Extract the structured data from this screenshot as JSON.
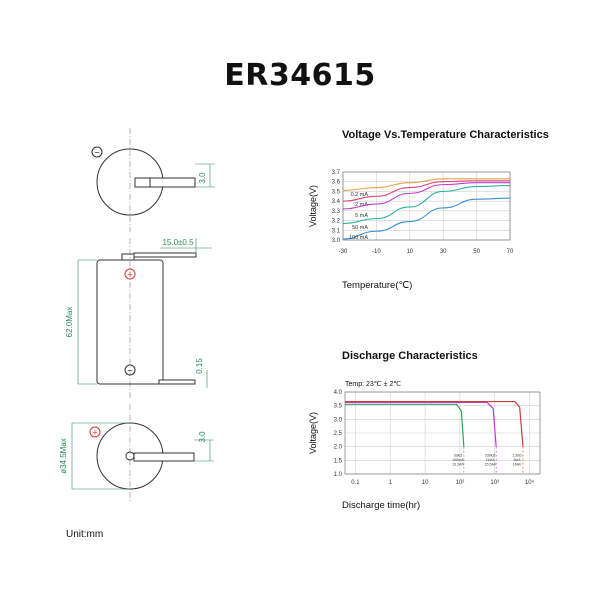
{
  "title": "ER34615",
  "unit_note": "Unit:mm",
  "drawing": {
    "top_view_sign": "−",
    "top_tab_dim": "3.0",
    "tab_length_dim": "15.0±0.5",
    "height_dim": "62.0Max",
    "tab_offset_dim": "0.15",
    "diameter_dim": "ø34.5Max",
    "bottom_tab_dim": "3.0",
    "plus_sign": "+",
    "minus_sign": "−"
  },
  "chart_data": [
    {
      "type": "line",
      "title": "Voltage Vs.Temperature Characteristics",
      "xlabel": "Temperature(℃)",
      "ylabel": "Voltage(V)",
      "xlim": [
        -30,
        70
      ],
      "ylim": [
        3.0,
        3.7
      ],
      "xticks": [
        "-30",
        "-10",
        "10",
        "30",
        "50",
        "70"
      ],
      "yticks": [
        "3.7",
        "3.6",
        "3.5",
        "3.4",
        "3.3",
        "3.2",
        "3.1",
        "3.0"
      ],
      "grid": true,
      "series": [
        {
          "name": "0.2 mA",
          "color": "#e8a24a",
          "x": [
            -30,
            -10,
            10,
            30,
            50,
            70
          ],
          "y": [
            3.51,
            3.54,
            3.59,
            3.63,
            3.63,
            3.63
          ]
        },
        {
          "name": "2 mA",
          "color": "#e0457b",
          "x": [
            -30,
            -10,
            10,
            30,
            50,
            70
          ],
          "y": [
            3.4,
            3.45,
            3.54,
            3.6,
            3.61,
            3.61
          ]
        },
        {
          "name": "5 mA",
          "color": "#c33bd0",
          "x": [
            -30,
            -10,
            10,
            30,
            50,
            70
          ],
          "y": [
            3.32,
            3.37,
            3.48,
            3.57,
            3.59,
            3.59
          ]
        },
        {
          "name": "50 mA",
          "color": "#2cb59c",
          "x": [
            -30,
            -10,
            10,
            30,
            50,
            70
          ],
          "y": [
            3.17,
            3.22,
            3.34,
            3.5,
            3.55,
            3.56
          ]
        },
        {
          "name": "100 mA",
          "color": "#3a8fd8",
          "x": [
            -30,
            -10,
            10,
            30,
            50,
            70
          ],
          "y": [
            3.01,
            3.09,
            3.19,
            3.33,
            3.42,
            3.43
          ]
        }
      ]
    },
    {
      "type": "line",
      "title": "Discharge Characteristics",
      "annotation": "Temp: 23℃ ± 2℃",
      "xlabel": "Discharge time(hr)",
      "ylabel": "Voltage(V)",
      "xscale": "log",
      "xlim": [
        0.05,
        20000
      ],
      "ylim": [
        1.0,
        4.0
      ],
      "xticks": [
        "0.1",
        "1",
        "10",
        "10²",
        "10³",
        "10⁴"
      ],
      "yticks": [
        "4.0",
        "3.5",
        "3.0",
        "2.5",
        "2.0",
        "1.5",
        "1.0"
      ],
      "grid": true,
      "series": [
        {
          "name": "33kΩ 100mA 13.2Ah",
          "color": "#2fa05a",
          "x": [
            0.05,
            80,
            110,
            130
          ],
          "y": [
            3.55,
            3.55,
            3.3,
            2.0
          ]
        },
        {
          "name": "330kΩ 11mA 15.5Ah",
          "color": "#c43bd0",
          "x": [
            0.05,
            600,
            900,
            1100
          ],
          "y": [
            3.62,
            3.62,
            3.4,
            2.0
          ]
        },
        {
          "name": "1.2kΩ 3mA 16Ah",
          "color": "#d23a3a",
          "x": [
            0.05,
            3800,
            5200,
            6500
          ],
          "y": [
            3.65,
            3.65,
            3.45,
            2.0
          ]
        }
      ]
    }
  ]
}
